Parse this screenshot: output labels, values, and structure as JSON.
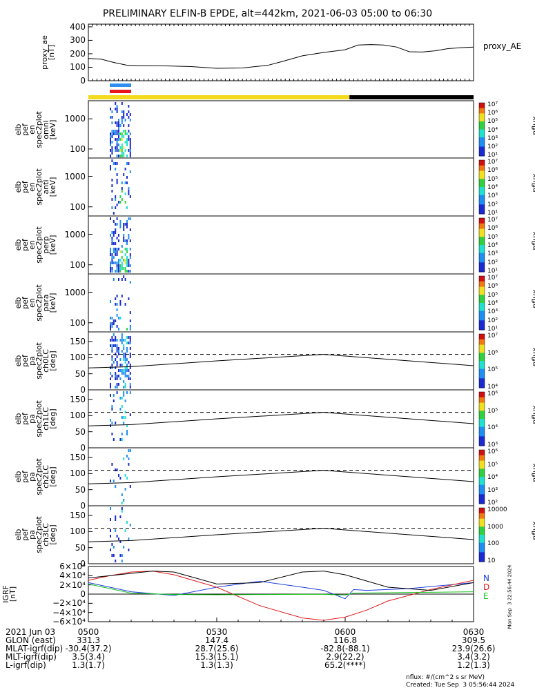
{
  "title": "PRELIMINARY ELFIN-B EPDE, alt=442km, 2021-06-03 05:00 to 06:30",
  "chart_data": [
    {
      "type": "line",
      "id": "proxy_ae",
      "ylabel": [
        "proxy_ae",
        "[nT]"
      ],
      "series": [
        {
          "name": "proxy_AE",
          "x": [
            0,
            3,
            6,
            9,
            12,
            18,
            24,
            30,
            36,
            42,
            45,
            50,
            55,
            60,
            63,
            66,
            69,
            72,
            75,
            78,
            81,
            84,
            87,
            90
          ],
          "values": [
            165,
            160,
            135,
            115,
            112,
            110,
            105,
            92,
            95,
            115,
            140,
            185,
            210,
            230,
            265,
            268,
            265,
            250,
            215,
            213,
            222,
            238,
            245,
            250
          ]
        }
      ],
      "ylim": [
        0,
        420
      ],
      "yticks": [
        "400",
        "300",
        "200",
        "100",
        "0"
      ]
    },
    {
      "type": "heatmap",
      "id": "en_omni",
      "ylabel": [
        "elb",
        "pef",
        "en",
        "spec2plot",
        "omni",
        "[keV]"
      ],
      "yscale": "log",
      "yticks": [
        "1000",
        "100"
      ],
      "colorbar": {
        "label": "nflux",
        "min": 10,
        "max": 10000000,
        "ticks": [
          "10⁷",
          "10⁶",
          "10⁵",
          "10⁴",
          "10³",
          "10²",
          "10¹"
        ]
      },
      "time_extent_min": [
        5.0,
        10.0
      ],
      "intensity": "high"
    },
    {
      "type": "heatmap",
      "id": "en_anti",
      "ylabel": [
        "elb",
        "pef",
        "en",
        "spec2plot",
        "anti",
        "[keV]"
      ],
      "yscale": "log",
      "yticks": [
        "1000",
        "100"
      ],
      "colorbar": {
        "label": "nflux",
        "min": 10,
        "max": 10000000,
        "ticks": [
          "10⁷",
          "10⁶",
          "10⁵",
          "10⁴",
          "10³",
          "10²",
          "10¹"
        ]
      },
      "time_extent_min": [
        5.0,
        10.0
      ],
      "intensity": "low"
    },
    {
      "type": "heatmap",
      "id": "en_perp",
      "ylabel": [
        "elb",
        "pef",
        "en",
        "spec2plot",
        "perp",
        "[keV]"
      ],
      "yscale": "log",
      "yticks": [
        "1000",
        "100"
      ],
      "colorbar": {
        "label": "nflux",
        "min": 10,
        "max": 10000000,
        "ticks": [
          "10⁷",
          "10⁶",
          "10⁵",
          "10⁴",
          "10³",
          "10²",
          "10¹"
        ]
      },
      "time_extent_min": [
        5.0,
        10.0
      ],
      "intensity": "high"
    },
    {
      "type": "heatmap",
      "id": "en_para",
      "ylabel": [
        "elb",
        "pef",
        "en",
        "spec2plot",
        "para",
        "[keV]"
      ],
      "yscale": "log",
      "yticks": [
        "1000",
        "100"
      ],
      "colorbar": {
        "label": "nflux",
        "min": 10,
        "max": 10000000,
        "ticks": [
          "10⁷",
          "10⁶",
          "10⁵",
          "10⁴",
          "10³",
          "10²",
          "10¹"
        ]
      },
      "time_extent_min": [
        5.0,
        10.0
      ],
      "intensity": "low"
    },
    {
      "type": "heatmap",
      "id": "pa_ch0",
      "ylabel": [
        "elb",
        "pef",
        "pa",
        "spec2plot",
        "ch0LC",
        "[deg]"
      ],
      "yscale": "linear",
      "ylim": [
        0,
        180
      ],
      "yticks": [
        "150",
        "100",
        "50",
        "0"
      ],
      "colorbar": {
        "label": "nflux",
        "min": 1000,
        "max": 10000000,
        "ticks": [
          "10⁷",
          "10⁶",
          "10⁵",
          "10⁴"
        ]
      },
      "time_extent_min": [
        5.0,
        10.0
      ],
      "dashed_line_deg": 110,
      "loss_cone_deg": {
        "x": [
          0,
          10,
          30,
          50,
          55,
          60,
          75,
          90
        ],
        "values": [
          68,
          72,
          90,
          106,
          110,
          105,
          90,
          75
        ]
      }
    },
    {
      "type": "heatmap",
      "id": "pa_ch1",
      "ylabel": [
        "elb",
        "pef",
        "pa",
        "spec2plot",
        "ch1LC",
        "[deg]"
      ],
      "yscale": "linear",
      "ylim": [
        0,
        180
      ],
      "yticks": [
        "150",
        "100",
        "50",
        "0"
      ],
      "colorbar": {
        "label": "nflux",
        "min": 1000,
        "max": 10000000,
        "ticks": [
          "10⁶",
          "10⁵",
          "10⁴",
          "10³"
        ]
      },
      "time_extent_min": [
        5.0,
        10.0
      ],
      "dashed_line_deg": 110,
      "loss_cone_deg": {
        "x": [
          0,
          10,
          30,
          50,
          55,
          60,
          75,
          90
        ],
        "values": [
          68,
          72,
          90,
          106,
          110,
          105,
          90,
          75
        ]
      }
    },
    {
      "type": "heatmap",
      "id": "pa_ch2",
      "ylabel": [
        "elb",
        "pef",
        "pa",
        "spec2plot",
        "ch2LC",
        "[deg]"
      ],
      "yscale": "linear",
      "ylim": [
        0,
        180
      ],
      "yticks": [
        "150",
        "100",
        "50",
        "0"
      ],
      "colorbar": {
        "label": "nflux",
        "min": 100,
        "max": 1000000,
        "ticks": [
          "10⁶",
          "10⁵",
          "10⁴",
          "10³",
          "10²"
        ]
      },
      "time_extent_min": [
        5.0,
        10.0
      ],
      "dashed_line_deg": 110,
      "loss_cone_deg": {
        "x": [
          0,
          10,
          30,
          50,
          55,
          60,
          75,
          90
        ],
        "values": [
          68,
          72,
          90,
          106,
          110,
          105,
          90,
          75
        ]
      }
    },
    {
      "type": "heatmap",
      "id": "pa_ch3",
      "ylabel": [
        "elb",
        "pef",
        "pa",
        "spec2plot",
        "ch3LC",
        "[deg]"
      ],
      "yscale": "linear",
      "ylim": [
        0,
        180
      ],
      "yticks": [
        "150",
        "100",
        "50",
        "0"
      ],
      "colorbar": {
        "label": "nflux",
        "min": 10,
        "max": 10000,
        "ticks": [
          "10000",
          "1000",
          "100",
          "10"
        ]
      },
      "time_extent_min": [
        5.0,
        10.0
      ],
      "dashed_line_deg": 110,
      "loss_cone_deg": {
        "x": [
          0,
          10,
          30,
          50,
          55,
          60,
          75,
          90
        ],
        "values": [
          68,
          72,
          90,
          106,
          110,
          105,
          90,
          75
        ]
      }
    },
    {
      "type": "line",
      "id": "igrf",
      "ylabel": [
        "IGRF",
        "[nT]"
      ],
      "ylim": [
        -60000,
        60000
      ],
      "yticks": [
        "6×10⁴",
        "4×10⁴",
        "2×10⁴",
        "0",
        "−2×10⁴",
        "−4×10⁴",
        "−6×10⁴"
      ],
      "legend": [
        "N",
        "D",
        "E"
      ],
      "series": [
        {
          "name": "N",
          "color": "#1a3ce0",
          "x": [
            0,
            10,
            20,
            30,
            40,
            50,
            55,
            60,
            62,
            65,
            75,
            90
          ],
          "values": [
            25000,
            5000,
            -3000,
            15000,
            28000,
            15000,
            8000,
            -10000,
            10000,
            8000,
            12000,
            25000
          ]
        },
        {
          "name": "D",
          "color": "#e01a1a",
          "x": [
            0,
            5,
            10,
            15,
            20,
            30,
            40,
            50,
            55,
            60,
            65,
            70,
            80,
            90
          ],
          "values": [
            30000,
            40000,
            48000,
            50000,
            42000,
            15000,
            -25000,
            -52000,
            -57000,
            -50000,
            -35000,
            -15000,
            10000,
            30000
          ]
        },
        {
          "name": "E",
          "color": "#13c41b",
          "x": [
            0,
            10,
            20,
            30,
            40,
            50,
            55,
            60,
            62,
            65,
            75,
            90
          ],
          "values": [
            22000,
            2000,
            -1000,
            -1500,
            -1000,
            -500,
            -500,
            -2000,
            2000,
            2500,
            3500,
            5000
          ]
        },
        {
          "name": "",
          "color": "#000000",
          "x": [
            0,
            10,
            15,
            20,
            25,
            30,
            40,
            50,
            55,
            60,
            70,
            80,
            90
          ],
          "values": [
            35000,
            45000,
            50000,
            48000,
            35000,
            22000,
            25000,
            48000,
            50000,
            42000,
            15000,
            8000,
            25000
          ]
        }
      ]
    }
  ],
  "bars": {
    "science_blue_min": [
      5.0,
      10.0
    ],
    "science_red_min": [
      5.0,
      10.0
    ],
    "sunlight_yellow_min": [
      0,
      61
    ],
    "shadow_black_min": [
      61,
      90
    ]
  },
  "footer": {
    "rows": [
      [
        "2021 Jun 03",
        "0500",
        "0530",
        "0600",
        "0630"
      ],
      [
        "GLON (east)",
        "331.3",
        "147.4",
        "116.8",
        "309.5"
      ],
      [
        "MLAT-igrf(dip)",
        "-30.4(37.2)",
        "28.7(25.6)",
        "-82.8(-88.1)",
        "23.9(26.6)"
      ],
      [
        "MLT-igrf(dip)",
        "3.5(3.4)",
        "15.3(15.1)",
        "2.9(22.2)",
        "3.4(3.2)"
      ],
      [
        "L-igrf(dip)",
        "1.3(1.7)",
        "1.3(1.3)",
        "65.2(****)",
        "1.2(1.3)"
      ]
    ],
    "units_note": "nflux: #/(cm^2 s sr MeV)",
    "created": "Created: Tue Sep  3 05:56:44 2024",
    "vertical_stamp": "Mon Sep  3 22:56:44 2024"
  }
}
